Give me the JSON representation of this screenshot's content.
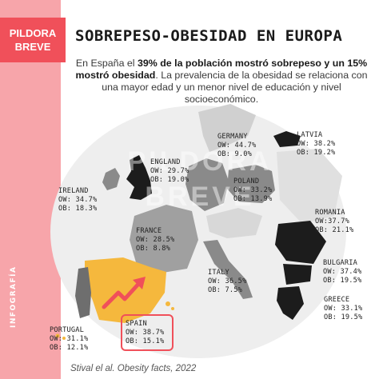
{
  "brand": {
    "line1": "PILDORA",
    "line2": "BREVE",
    "side_label": "INFOGRAFÍA"
  },
  "title": "SOBREPESO-OBESIDAD EN EUROPA",
  "intro": {
    "p1": "En España el ",
    "b1": "39% de la población mostró sobrepeso y un 15% mostró obesidad",
    "p2": ". La prevalencia de la obesidad se relaciona con una mayor edad y un menor nivel de educación y nivel socioeconómico."
  },
  "watermark": {
    "line1": "PILDORA",
    "line2": "BREVE"
  },
  "countries": {
    "latvia": {
      "name": "LATVIA",
      "ow": "OW: 38.2%",
      "ob": "OB: 19.2%"
    },
    "germany": {
      "name": "GERMANY",
      "ow": "OW: 44.7%",
      "ob": "OB: 9.0%"
    },
    "england": {
      "name": "ENGLAND",
      "ow": "OW: 29.7%",
      "ob": "OB: 19.0%"
    },
    "ireland": {
      "name": "IRELAND",
      "ow": "OW: 34.7%",
      "ob": "OB: 18.3%"
    },
    "poland": {
      "name": "POLAND",
      "ow": "OW: 33.2%",
      "ob": "OB: 13.9%"
    },
    "romania": {
      "name": "ROMANIA",
      "ow": "OW:37.7%",
      "ob": "OB: 21.1%"
    },
    "france": {
      "name": "FRANCE",
      "ow": "OW: 28.5%",
      "ob": "OB: 8.8%"
    },
    "bulgaria": {
      "name": "BULGARIA",
      "ow": "OW: 37.4%",
      "ob": "OB: 19.5%"
    },
    "italy": {
      "name": "ITALY",
      "ow": "OW: 36.5%",
      "ob": "OB: 7.5%"
    },
    "greece": {
      "name": "GREECE",
      "ow": "OW: 33.1%",
      "ob": "OB: 19.5%"
    },
    "spain": {
      "name": "SPAIN",
      "ow": "OW: 38.7%",
      "ob": "OB: 15.1%"
    },
    "portugal": {
      "name": "PORTUGAL",
      "ow": "OW: 31.1%",
      "ob": "OB: 12.1%"
    }
  },
  "source": "Stival el al. Obesity facts, 2022",
  "colors": {
    "accent": "#f0505a",
    "sidebar": "#f7a5aa",
    "spain": "#f5b83d",
    "dark": "#1c1c1c",
    "mid": "#8a8a8a",
    "light": "#e8e8e8"
  }
}
